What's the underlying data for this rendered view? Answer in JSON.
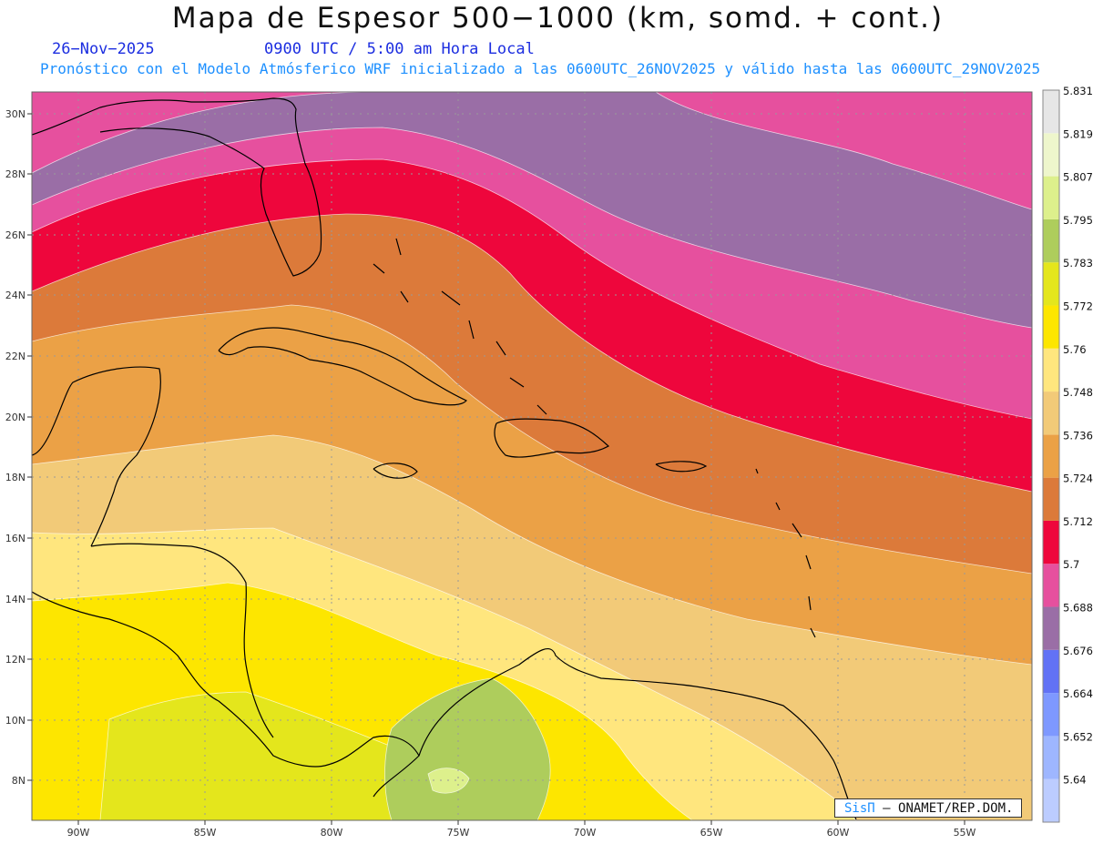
{
  "header": {
    "title": "Mapa de Espesor 500−1000 (km, somd. + cont.)",
    "date": "26−Nov−2025",
    "time": "0900 UTC / 5:00 am Hora Local",
    "forecast": "Pronóstico con el Modelo Atmósferico WRF inicializado a las 0600UTC_26NOV2025 y válido hasta las  0600UTC_29NOV2025"
  },
  "map": {
    "lat_ticks": [
      "30N",
      "28N",
      "26N",
      "24N",
      "22N",
      "20N",
      "18N",
      "16N",
      "14N",
      "12N",
      "10N",
      "8N"
    ],
    "lon_ticks": [
      "90W",
      "85W",
      "80W",
      "75W",
      "70W",
      "65W",
      "60W",
      "55W"
    ],
    "gridlines": true
  },
  "colorbar": {
    "labels": [
      "5.64",
      "5.652",
      "5.664",
      "5.676",
      "5.688",
      "5.7",
      "5.712",
      "5.724",
      "5.736",
      "5.748",
      "5.76",
      "5.772",
      "5.783",
      "5.795",
      "5.807",
      "5.819",
      "5.831"
    ],
    "colors": [
      "#bcccff",
      "#9eb6ff",
      "#7e98ff",
      "#6272f5",
      "#9a6ea6",
      "#e6509e",
      "#ee063c",
      "#dc7a3a",
      "#eba146",
      "#f2ca78",
      "#ffe67e",
      "#fde600",
      "#e4e61c",
      "#aecd5c",
      "#ddf08c",
      "#eef6cc",
      "#e6e6e6"
    ]
  },
  "credit": {
    "brand": "SisΠ",
    "org": "– ONAMET/REP.DOM."
  }
}
